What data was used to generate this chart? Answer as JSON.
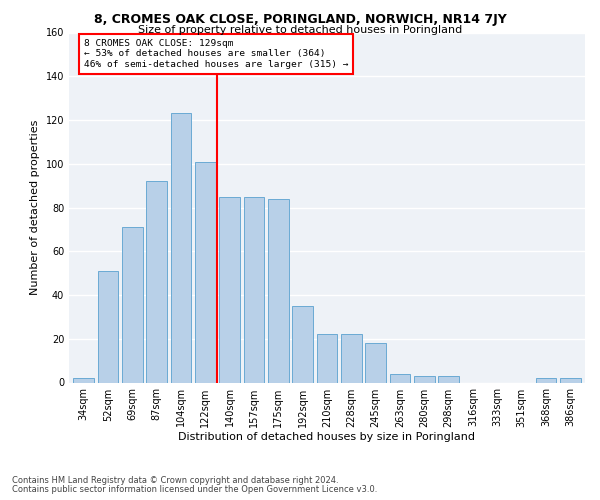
{
  "title": "8, CROMES OAK CLOSE, PORINGLAND, NORWICH, NR14 7JY",
  "subtitle": "Size of property relative to detached houses in Poringland",
  "xlabel": "Distribution of detached houses by size in Poringland",
  "ylabel": "Number of detached properties",
  "bar_labels": [
    "34sqm",
    "52sqm",
    "69sqm",
    "87sqm",
    "104sqm",
    "122sqm",
    "140sqm",
    "157sqm",
    "175sqm",
    "192sqm",
    "210sqm",
    "228sqm",
    "245sqm",
    "263sqm",
    "280sqm",
    "298sqm",
    "316sqm",
    "333sqm",
    "351sqm",
    "368sqm",
    "386sqm"
  ],
  "bar_heights": [
    2,
    51,
    71,
    92,
    123,
    101,
    85,
    85,
    84,
    35,
    22,
    22,
    18,
    4,
    3,
    3,
    0,
    0,
    0,
    2,
    2
  ],
  "bar_color": "#b8d0e8",
  "bar_edge_color": "#6aaad4",
  "vline_x": 5.5,
  "vline_color": "red",
  "annotation_text": "8 CROMES OAK CLOSE: 129sqm\n← 53% of detached houses are smaller (364)\n46% of semi-detached houses are larger (315) →",
  "annotation_box_color": "white",
  "annotation_box_edge": "red",
  "ylim": [
    0,
    160
  ],
  "yticks": [
    0,
    20,
    40,
    60,
    80,
    100,
    120,
    140,
    160
  ],
  "footer1": "Contains HM Land Registry data © Crown copyright and database right 2024.",
  "footer2": "Contains public sector information licensed under the Open Government Licence v3.0.",
  "bg_color": "#eef2f7",
  "grid_color": "white",
  "title_fontsize": 9,
  "subtitle_fontsize": 8,
  "ylabel_fontsize": 8,
  "xlabel_fontsize": 8,
  "tick_fontsize": 7,
  "footer_fontsize": 6
}
